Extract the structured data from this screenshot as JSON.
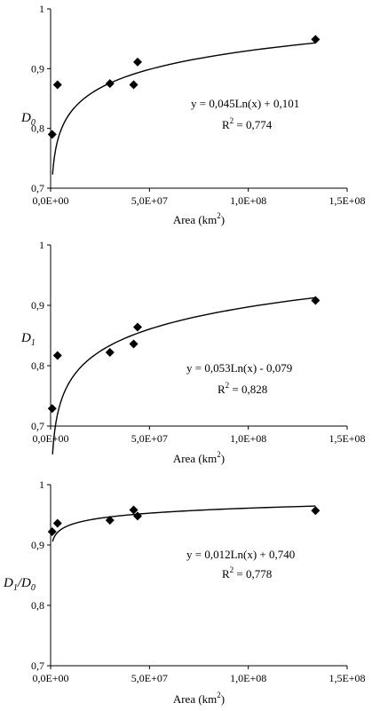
{
  "chart_data": [
    {
      "type": "scatter",
      "ylabel_main": "D",
      "ylabel_sub": "0",
      "xlabel_text": "Area (km",
      "xlabel_sup": "2",
      "xlabel_close": ")",
      "xlim": [
        0,
        150000000
      ],
      "ylim": [
        0.7,
        1.0
      ],
      "x_ticks": [
        0,
        50000000,
        100000000,
        150000000
      ],
      "x_tick_labels": [
        "0,0E+00",
        "5,0E+07",
        "1,0E+08",
        "1,5E+08"
      ],
      "y_ticks": [
        0.7,
        0.8,
        0.9,
        1.0
      ],
      "y_tick_labels": [
        "0,7",
        "0,8",
        "0,9",
        "1"
      ],
      "grid": false,
      "points": [
        {
          "x": 800000,
          "y": 0.79
        },
        {
          "x": 3500000,
          "y": 0.873
        },
        {
          "x": 30000000,
          "y": 0.875
        },
        {
          "x": 42000000,
          "y": 0.873
        },
        {
          "x": 44000000,
          "y": 0.911
        },
        {
          "x": 134000000,
          "y": 0.949
        }
      ],
      "trendline": {
        "a": 0.045,
        "b": 0.101,
        "x_start": 1000000,
        "x_end": 134000000
      },
      "equation": "y = 0,045Ln(x) + 0,101",
      "r2_label": "R",
      "r2_sup": "2",
      "r2_value": " = 0,774"
    },
    {
      "type": "scatter",
      "ylabel_main": "D",
      "ylabel_sub": "1",
      "xlabel_text": "Area (km",
      "xlabel_sup": "2",
      "xlabel_close": ")",
      "xlim": [
        0,
        150000000
      ],
      "ylim": [
        0.7,
        1.0
      ],
      "x_ticks": [
        0,
        50000000,
        100000000,
        150000000
      ],
      "x_tick_labels": [
        "0,0E+00",
        "5,0E+07",
        "1,0E+08",
        "1,5E+08"
      ],
      "y_ticks": [
        0.7,
        0.8,
        0.9,
        1.0
      ],
      "y_tick_labels": [
        "0,7",
        "0,8",
        "0,9",
        "1"
      ],
      "grid": false,
      "points": [
        {
          "x": 800000,
          "y": 0.729
        },
        {
          "x": 3500000,
          "y": 0.817
        },
        {
          "x": 30000000,
          "y": 0.822
        },
        {
          "x": 42000000,
          "y": 0.836
        },
        {
          "x": 44000000,
          "y": 0.864
        },
        {
          "x": 134000000,
          "y": 0.908
        }
      ],
      "trendline": {
        "a": 0.053,
        "b": -0.079,
        "x_start": 1000000,
        "x_end": 134000000
      },
      "equation": "y = 0,053Ln(x) - 0,079",
      "r2_label": "R",
      "r2_sup": "2",
      "r2_value": " = 0,828"
    },
    {
      "type": "scatter",
      "ylabel_main": "D",
      "ylabel_sub": "1",
      "ylabel_slash": "/D",
      "ylabel_sub2": "0",
      "xlabel_text": "Area (km",
      "xlabel_sup": "2",
      "xlabel_close": ")",
      "xlim": [
        0,
        150000000
      ],
      "ylim": [
        0.7,
        1.0
      ],
      "x_ticks": [
        0,
        50000000,
        100000000,
        150000000
      ],
      "x_tick_labels": [
        "0,0E+00",
        "5,0E+07",
        "1,0E+08",
        "1,5E+08"
      ],
      "y_ticks": [
        0.7,
        0.8,
        0.9,
        1.0
      ],
      "y_tick_labels": [
        "0,7",
        "0,8",
        "0,9",
        "1"
      ],
      "grid": false,
      "points": [
        {
          "x": 800000,
          "y": 0.922
        },
        {
          "x": 3500000,
          "y": 0.936
        },
        {
          "x": 30000000,
          "y": 0.941
        },
        {
          "x": 42000000,
          "y": 0.958
        },
        {
          "x": 44000000,
          "y": 0.948
        },
        {
          "x": 134000000,
          "y": 0.957
        }
      ],
      "trendline": {
        "a": 0.012,
        "b": 0.74,
        "x_start": 1000000,
        "x_end": 134000000
      },
      "equation": "y = 0,012Ln(x) + 0,740",
      "r2_label": "R",
      "r2_sup": "2",
      "r2_value": " = 0,778"
    }
  ]
}
